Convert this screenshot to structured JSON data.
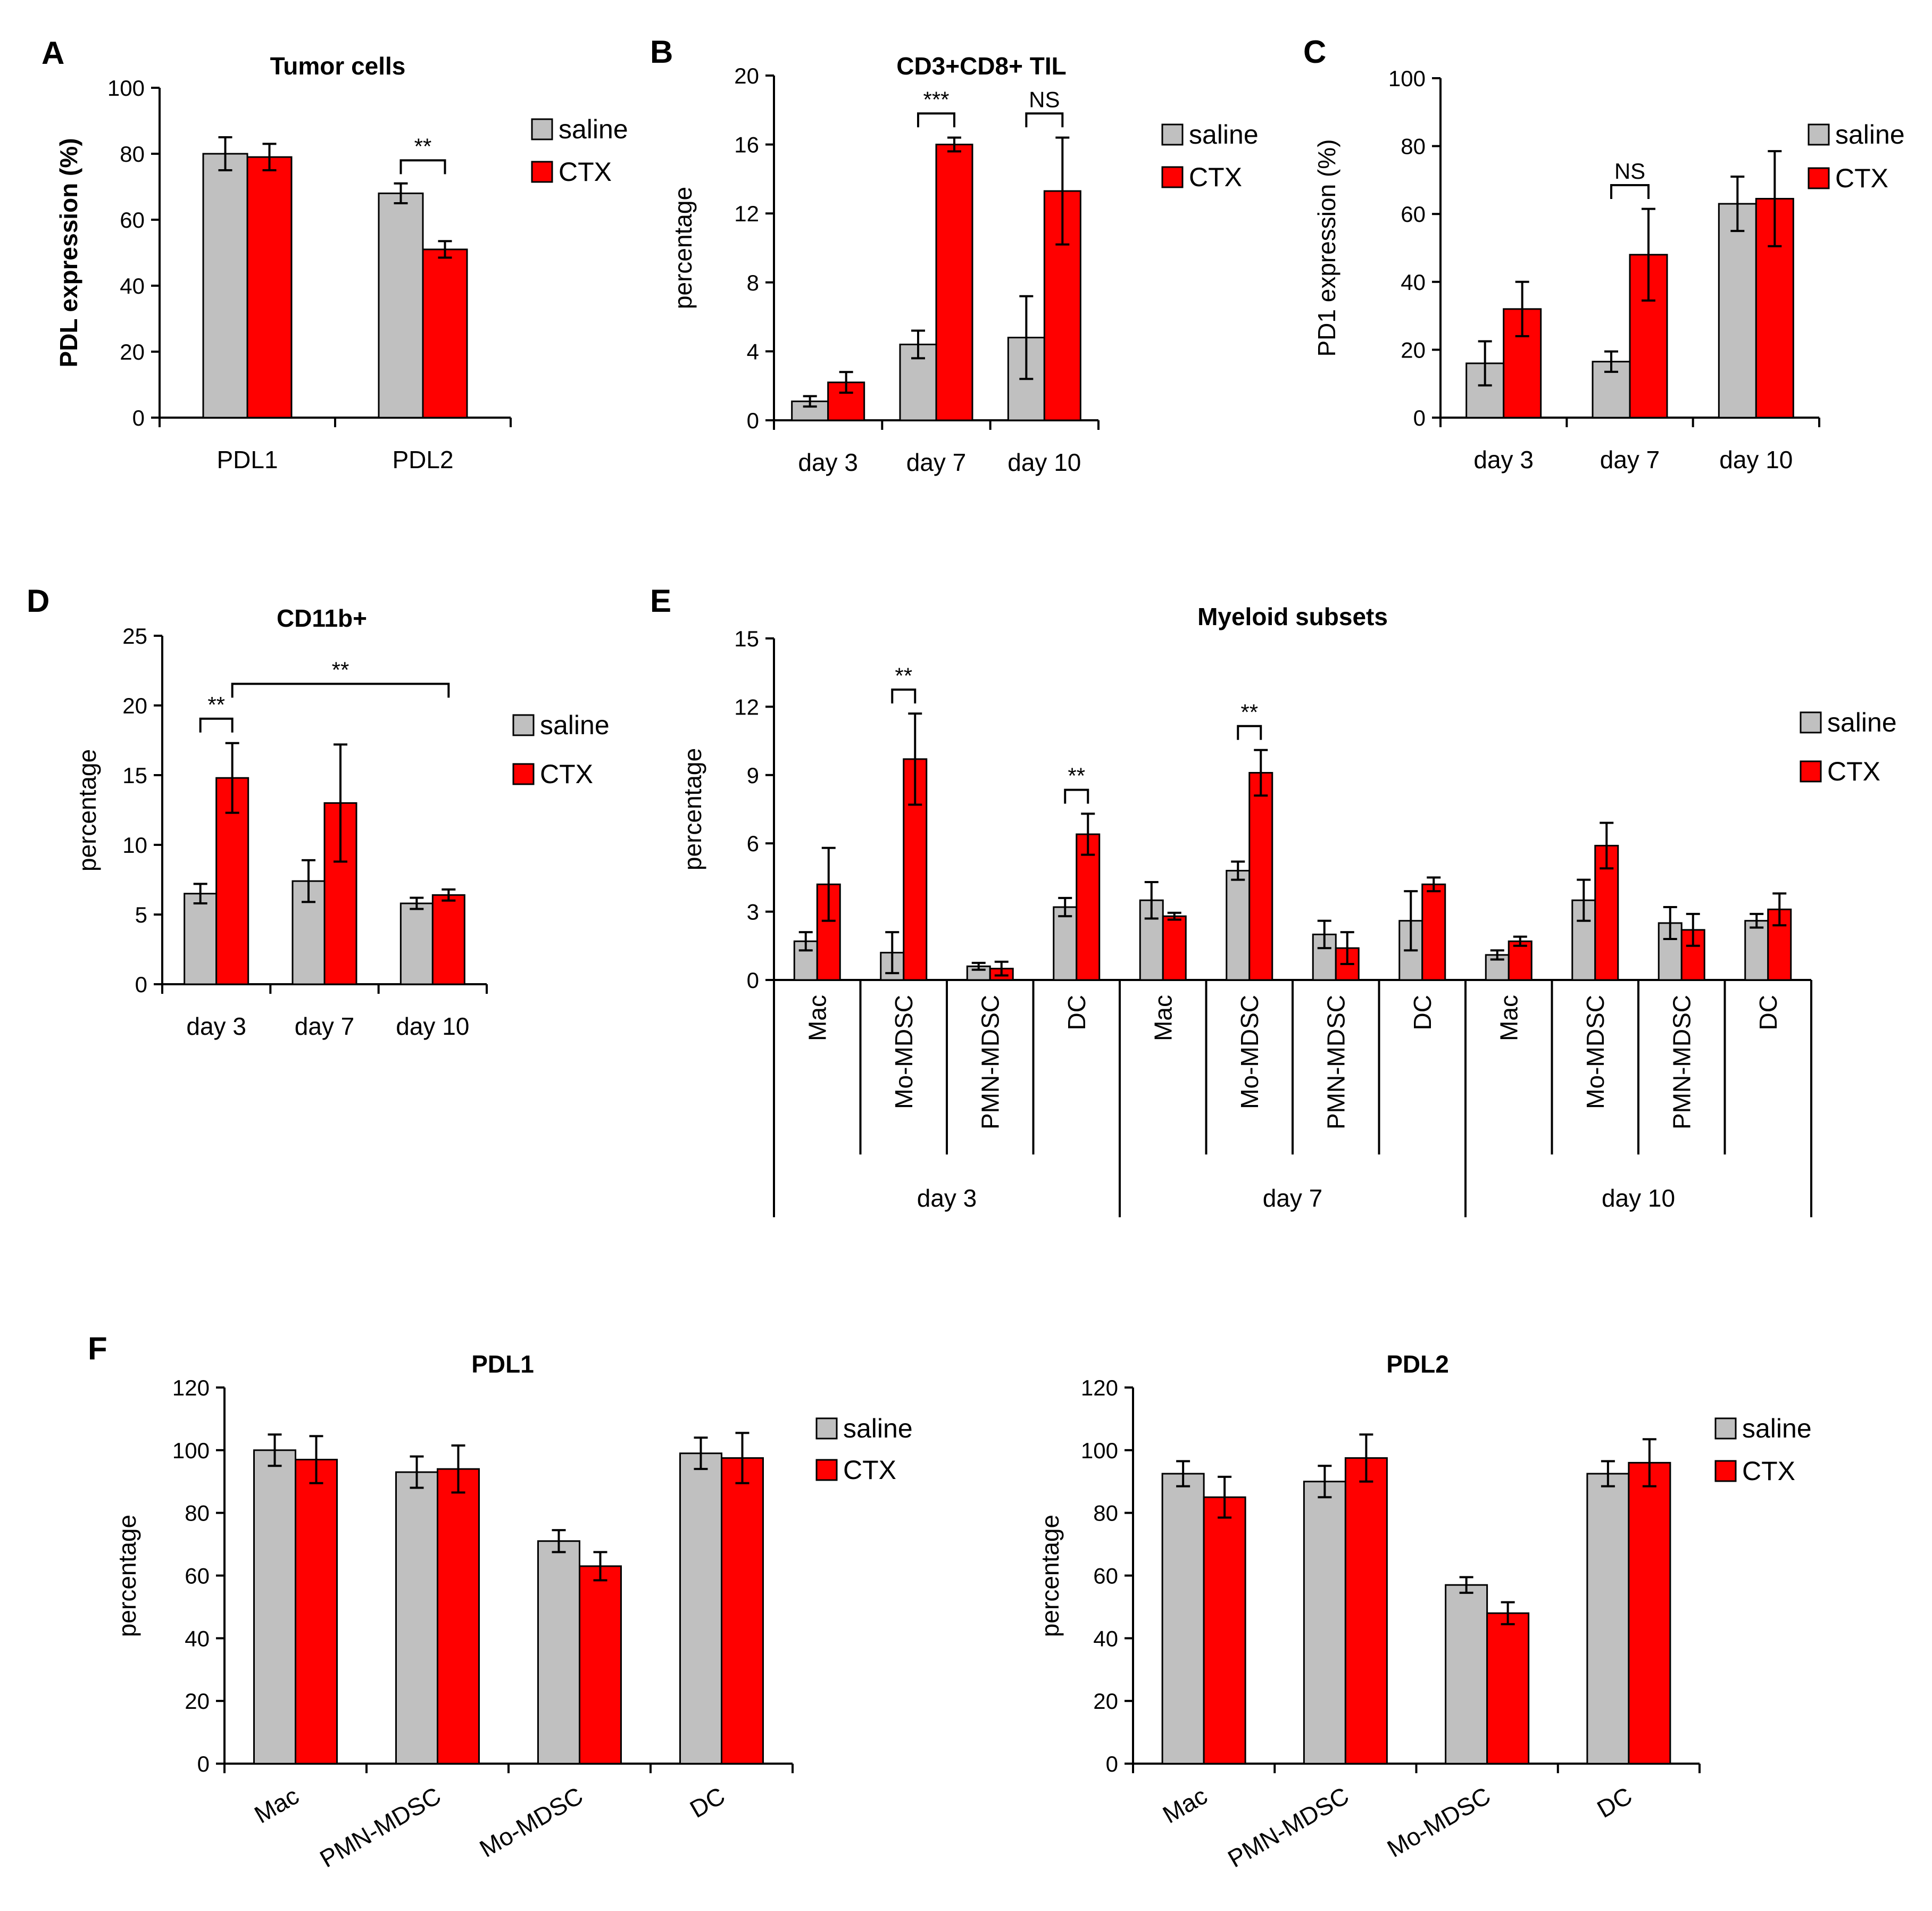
{
  "colors": {
    "saline": "#c0c0c0",
    "ctx": "#ff0000",
    "axis": "#000000",
    "edge": "#000000"
  },
  "chart_data": [
    {
      "id": "A",
      "panel_label": "A",
      "type": "bar",
      "title": "Tumor cells",
      "ylabel": "PDL expression (%)",
      "ylabel_bold": true,
      "ylim": [
        0,
        100
      ],
      "yticks": [
        "0",
        "20",
        "40",
        "60",
        "80",
        "100"
      ],
      "categories": [
        "PDL1",
        "PDL2"
      ],
      "series": [
        {
          "name": "saline",
          "values": [
            80,
            68
          ],
          "errors": [
            5,
            3
          ]
        },
        {
          "name": "CTX",
          "values": [
            79,
            51
          ],
          "errors": [
            4,
            2.5
          ]
        }
      ],
      "significance": [
        {
          "label": "**",
          "from": "PDL2.saline",
          "to": "PDL2.CTX"
        }
      ]
    },
    {
      "id": "B",
      "panel_label": "B",
      "type": "bar",
      "title": "CD3+CD8+ TIL",
      "ylabel": "percentage",
      "ylabel_bold": false,
      "ylim": [
        0,
        20
      ],
      "yticks": [
        "0",
        "4",
        "8",
        "12",
        "16",
        "20"
      ],
      "categories": [
        "day 3",
        "day 7",
        "day 10"
      ],
      "series": [
        {
          "name": "saline",
          "values": [
            1.1,
            4.4,
            4.8
          ],
          "errors": [
            0.3,
            0.8,
            2.4
          ]
        },
        {
          "name": "CTX",
          "values": [
            2.2,
            16.0,
            13.3
          ],
          "errors": [
            0.6,
            0.4,
            3.1
          ]
        }
      ],
      "significance": [
        {
          "label": "***",
          "from": "day 7.saline",
          "to": "day 7.CTX"
        },
        {
          "label": "NS",
          "from": "day 10.saline",
          "to": "day 10.CTX"
        }
      ]
    },
    {
      "id": "C",
      "panel_label": "C",
      "type": "bar",
      "title": "",
      "ylabel": "PD1 expression (%)",
      "ylabel_bold": false,
      "ylim": [
        0,
        100
      ],
      "yticks": [
        "0",
        "20",
        "40",
        "60",
        "80",
        "100"
      ],
      "categories": [
        "day 3",
        "day 7",
        "day 10"
      ],
      "series": [
        {
          "name": "saline",
          "values": [
            16,
            16.5,
            63
          ],
          "errors": [
            6.5,
            3,
            8
          ]
        },
        {
          "name": "CTX",
          "values": [
            32,
            48,
            64.5
          ],
          "errors": [
            8,
            13.5,
            14
          ]
        }
      ],
      "significance": [
        {
          "label": "NS",
          "from": "day 7.saline",
          "to": "day 7.CTX"
        }
      ]
    },
    {
      "id": "D",
      "panel_label": "D",
      "type": "bar",
      "title": "CD11b+",
      "ylabel": "percentage",
      "ylabel_bold": false,
      "ylim": [
        0,
        25
      ],
      "yticks": [
        "0",
        "5",
        "10",
        "15",
        "20",
        "25"
      ],
      "categories": [
        "day 3",
        "day 7",
        "day 10"
      ],
      "series": [
        {
          "name": "saline",
          "values": [
            6.5,
            7.4,
            5.8
          ],
          "errors": [
            0.7,
            1.5,
            0.4
          ]
        },
        {
          "name": "CTX",
          "values": [
            14.8,
            13.0,
            6.4
          ],
          "errors": [
            2.5,
            4.2,
            0.4
          ]
        }
      ],
      "significance": [
        {
          "label": "**",
          "from": "day 3.saline",
          "to": "day 3.CTX"
        },
        {
          "label": "**",
          "from": "day 3.CTX",
          "to": "day 10.CTX"
        }
      ]
    },
    {
      "id": "E",
      "panel_label": "E",
      "type": "bar",
      "title": "Myeloid subsets",
      "ylabel": "percentage",
      "ylabel_bold": false,
      "ylim": [
        0,
        15
      ],
      "yticks": [
        "0",
        "3",
        "6",
        "9",
        "12",
        "15"
      ],
      "groups": [
        "day 3",
        "day 7",
        "day 10"
      ],
      "categories": [
        "Mac",
        "Mo-MDSC",
        "PMN-MDSC",
        "DC",
        "Mac",
        "Mo-MDSC",
        "PMN-MDSC",
        "DC",
        "Mac",
        "Mo-MDSC",
        "PMN-MDSC",
        "DC"
      ],
      "series": [
        {
          "name": "saline",
          "values": [
            1.7,
            1.2,
            0.6,
            3.2,
            3.5,
            4.8,
            2.0,
            2.6,
            1.1,
            3.5,
            2.5,
            2.6
          ],
          "errors": [
            0.4,
            0.9,
            0.15,
            0.4,
            0.8,
            0.4,
            0.6,
            1.3,
            0.2,
            0.9,
            0.7,
            0.3
          ]
        },
        {
          "name": "CTX",
          "values": [
            4.2,
            9.7,
            0.5,
            6.4,
            2.8,
            9.1,
            1.4,
            4.2,
            1.7,
            5.9,
            2.2,
            3.1
          ],
          "errors": [
            1.6,
            2.0,
            0.3,
            0.9,
            0.15,
            1.0,
            0.7,
            0.3,
            0.2,
            1.0,
            0.7,
            0.7
          ]
        }
      ],
      "significance": [
        {
          "label": "**",
          "from": "1.saline",
          "to": "1.CTX"
        },
        {
          "label": "**",
          "from": "3.saline",
          "to": "3.CTX"
        },
        {
          "label": "**",
          "from": "5.saline",
          "to": "5.CTX"
        }
      ]
    },
    {
      "id": "F1",
      "panel_label": "F",
      "type": "bar",
      "title": "PDL1",
      "ylabel": "percentage",
      "ylabel_bold": false,
      "ylim": [
        0,
        120
      ],
      "yticks": [
        "0",
        "20",
        "40",
        "60",
        "80",
        "100",
        "120"
      ],
      "categories": [
        "Mac",
        "PMN-MDSC",
        "Mo-MDSC",
        "DC"
      ],
      "series": [
        {
          "name": "saline",
          "values": [
            100,
            93,
            71,
            99
          ],
          "errors": [
            5,
            5,
            3.5,
            5
          ]
        },
        {
          "name": "CTX",
          "values": [
            97,
            94,
            63,
            97.5
          ],
          "errors": [
            7.5,
            7.5,
            4.5,
            8
          ]
        }
      ],
      "significance": []
    },
    {
      "id": "F2",
      "panel_label": "",
      "type": "bar",
      "title": "PDL2",
      "ylabel": "percentage",
      "ylabel_bold": false,
      "ylim": [
        0,
        120
      ],
      "yticks": [
        "0",
        "20",
        "40",
        "60",
        "80",
        "100",
        "120"
      ],
      "categories": [
        "Mac",
        "PMN-MDSC",
        "Mo-MDSC",
        "DC"
      ],
      "series": [
        {
          "name": "saline",
          "values": [
            92.5,
            90,
            57,
            92.5
          ],
          "errors": [
            4,
            5,
            2.5,
            4
          ]
        },
        {
          "name": "CTX",
          "values": [
            85,
            97.5,
            48,
            96
          ],
          "errors": [
            6.5,
            7.5,
            3.5,
            7.5
          ]
        }
      ],
      "significance": []
    }
  ]
}
